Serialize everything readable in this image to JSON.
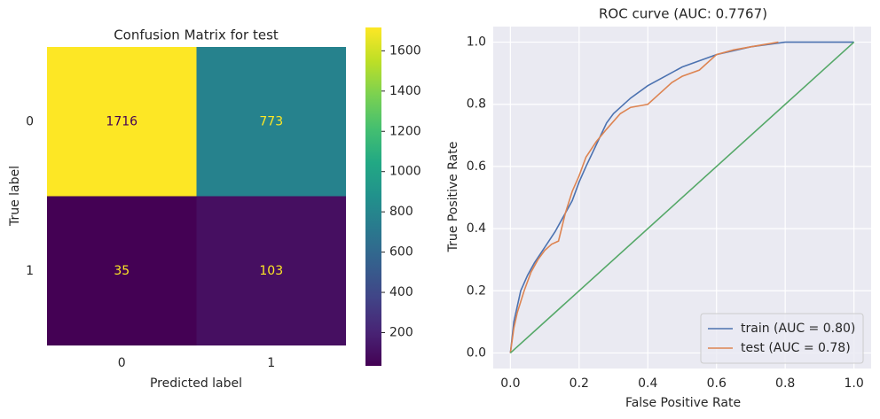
{
  "chart_data": [
    {
      "type": "heatmap",
      "title": "Confusion Matrix for test",
      "xlabel": "Predicted label",
      "ylabel": "True label",
      "x_categories": [
        "0",
        "1"
      ],
      "y_categories": [
        "0",
        "1"
      ],
      "values": [
        [
          1716,
          773
        ],
        [
          35,
          103
        ]
      ],
      "colormap": "viridis",
      "colorbar_lim": [
        35,
        1716
      ],
      "colorbar_ticks": [
        200,
        400,
        600,
        800,
        1000,
        1200,
        1400,
        1600
      ]
    },
    {
      "type": "line",
      "title": "ROC curve (AUC: 0.7767)",
      "xlabel": "False Positive Rate",
      "ylabel": "True Positive Rate",
      "xlim": [
        -0.05,
        1.05
      ],
      "ylim": [
        -0.05,
        1.05
      ],
      "xticks": [
        {
          "value": 0,
          "label": "0.0"
        },
        0.2,
        0.4,
        0.6,
        0.8,
        {
          "value": 1,
          "label": "1.0"
        }
      ],
      "yticks": [
        {
          "value": 0,
          "label": "0.0"
        },
        0.2,
        0.4,
        0.6,
        0.8,
        {
          "value": 1,
          "label": "1.0"
        }
      ],
      "grid": true,
      "legend": "lower right",
      "series": [
        {
          "name": "train (AUC = 0.80)",
          "color": "#4c72b0",
          "x": [
            0,
            0.005,
            0.01,
            0.02,
            0.03,
            0.05,
            0.07,
            0.1,
            0.13,
            0.15,
            0.18,
            0.2,
            0.22,
            0.25,
            0.28,
            0.3,
            0.35,
            0.4,
            0.45,
            0.5,
            0.55,
            0.6,
            0.7,
            0.8,
            1.0
          ],
          "values": [
            0,
            0.05,
            0.1,
            0.15,
            0.2,
            0.25,
            0.29,
            0.34,
            0.39,
            0.43,
            0.49,
            0.55,
            0.6,
            0.67,
            0.74,
            0.77,
            0.82,
            0.86,
            0.89,
            0.92,
            0.94,
            0.96,
            0.985,
            1.0,
            1.0
          ]
        },
        {
          "name": "test (AUC = 0.78)",
          "color": "#dd8452",
          "x": [
            0,
            0.005,
            0.01,
            0.02,
            0.04,
            0.06,
            0.08,
            0.1,
            0.12,
            0.14,
            0.16,
            0.18,
            0.2,
            0.22,
            0.25,
            0.28,
            0.32,
            0.35,
            0.4,
            0.43,
            0.47,
            0.5,
            0.55,
            0.6,
            0.65,
            0.7,
            0.78
          ],
          "values": [
            0,
            0.04,
            0.08,
            0.13,
            0.2,
            0.26,
            0.3,
            0.33,
            0.35,
            0.36,
            0.45,
            0.52,
            0.57,
            0.63,
            0.68,
            0.72,
            0.77,
            0.79,
            0.8,
            0.83,
            0.87,
            0.89,
            0.91,
            0.96,
            0.975,
            0.985,
            1.0
          ]
        },
        {
          "color": "#55a868",
          "x": [
            0,
            1
          ],
          "values": [
            0,
            1
          ]
        }
      ]
    }
  ]
}
